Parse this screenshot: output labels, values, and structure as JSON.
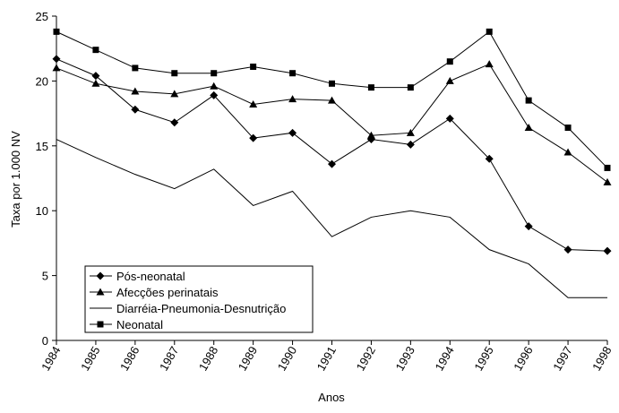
{
  "chart_data": {
    "type": "line",
    "x_label": "Anos",
    "y_label": "Taxa por 1.000 NV",
    "categories": [
      "1984",
      "1985",
      "1986",
      "1987",
      "1988",
      "1989",
      "1990",
      "1991",
      "1992",
      "1993",
      "1994",
      "1995",
      "1996",
      "1997",
      "1998"
    ],
    "ylim": [
      0,
      25
    ],
    "yticks": [
      0,
      5,
      10,
      15,
      20,
      25
    ],
    "series": [
      {
        "name": "Pós-neonatal",
        "color": "#000000",
        "marker": "diamond",
        "values": [
          21.7,
          20.4,
          17.8,
          16.8,
          18.9,
          15.6,
          16.0,
          13.6,
          15.5,
          15.1,
          17.1,
          14.0,
          8.8,
          7.0,
          6.9
        ]
      },
      {
        "name": "Afecções perinatais",
        "color": "#000000",
        "marker": "triangle",
        "values": [
          21.0,
          19.8,
          19.2,
          19.0,
          19.6,
          18.2,
          18.6,
          18.5,
          15.8,
          16.0,
          20.0,
          21.3,
          16.4,
          14.5,
          12.2
        ]
      },
      {
        "name": "Diarréia-Pneumonia-Desnutrição",
        "color": "#000000",
        "marker": "none",
        "values": [
          15.5,
          14.1,
          12.8,
          11.7,
          13.2,
          10.4,
          11.5,
          8.0,
          9.5,
          10.0,
          9.5,
          7.0,
          5.9,
          3.3,
          3.3
        ]
      },
      {
        "name": "Neonatal",
        "color": "#000000",
        "marker": "square",
        "values": [
          23.8,
          22.4,
          21.0,
          20.6,
          20.6,
          21.1,
          20.6,
          19.8,
          19.5,
          19.5,
          21.5,
          23.8,
          18.5,
          16.4,
          13.3
        ]
      }
    ]
  }
}
